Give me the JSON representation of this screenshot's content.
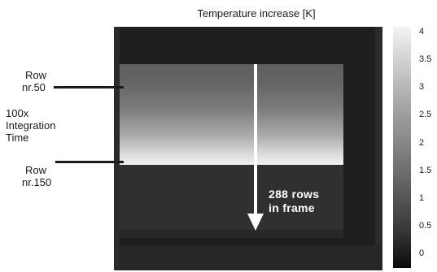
{
  "title": "Temperature increase [K]",
  "labels": {
    "row50_line1": "Row",
    "row50_line2": "nr.50",
    "row150_line1": "Row",
    "row150_line2": "nr.150",
    "integ_line1": "100x",
    "integ_line2": "Integration",
    "integ_line3": "Time",
    "rows_line1": "288 rows",
    "rows_line2": "in  frame"
  },
  "colorbar": {
    "ticks": [
      "4",
      "3.5",
      "3",
      "2.5",
      "2",
      "1.5",
      "1",
      "0.5",
      "0"
    ],
    "range": [
      0,
      4
    ],
    "colors": [
      "#ffffff",
      "#000000"
    ]
  }
}
